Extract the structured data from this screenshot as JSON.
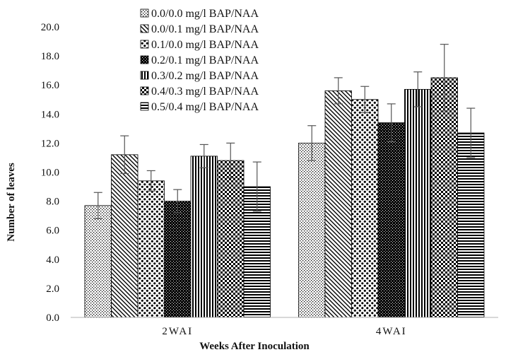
{
  "chart_data": {
    "type": "bar",
    "xlabel": "Weeks After Inoculation",
    "ylabel": "Number of leaves",
    "ylim": [
      0,
      20
    ],
    "ytick_step": 2,
    "ytick_format_decimals": 1,
    "categories": [
      "2WAI",
      "4WAI"
    ],
    "legend_position": "top-left",
    "grid": false,
    "series": [
      {
        "name": "0.0/0.0 mg/l BAP/NAA",
        "pattern": "dots-fine",
        "values": [
          7.7,
          12.0
        ],
        "errors": [
          0.9,
          1.2
        ]
      },
      {
        "name": "0.0/0.1 mg/l BAP/NAA",
        "pattern": "diag-back",
        "values": [
          11.2,
          15.6
        ],
        "errors": [
          1.3,
          0.9
        ]
      },
      {
        "name": "0.1/0.0 mg/l BAP/NAA",
        "pattern": "dots-coarse",
        "values": [
          9.4,
          15.0
        ],
        "errors": [
          0.7,
          0.9
        ]
      },
      {
        "name": "0.2/0.1 mg/l BAP/NAA",
        "pattern": "dark-dots",
        "values": [
          8.0,
          13.4
        ],
        "errors": [
          0.8,
          1.3
        ]
      },
      {
        "name": "0.3/0.2 mg/l BAP/NAA",
        "pattern": "vert-lines",
        "values": [
          11.1,
          15.7
        ],
        "errors": [
          0.8,
          1.2
        ]
      },
      {
        "name": "0.4/0.3 mg/l BAP/NAA",
        "pattern": "checker",
        "values": [
          10.8,
          16.5
        ],
        "errors": [
          1.2,
          2.3
        ]
      },
      {
        "name": "0.5/0.4 mg/l BAP/NAA",
        "pattern": "horiz-lines",
        "values": [
          9.0,
          12.7
        ],
        "errors": [
          1.7,
          1.7
        ]
      }
    ]
  }
}
